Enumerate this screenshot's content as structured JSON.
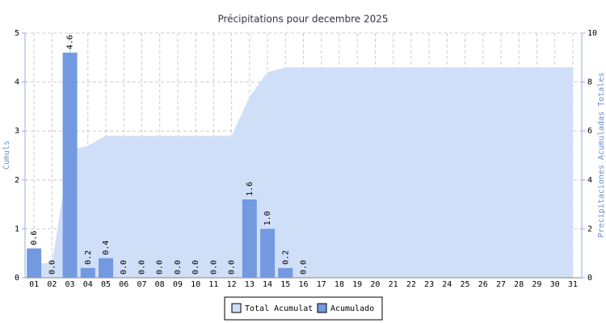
{
  "chart_data": {
    "type": "bar",
    "title": "Précipitations pour decembre 2025",
    "ylabel": "Cumuls",
    "y2label": "Precipitaciones Acumuladas Totales",
    "categories": [
      "01",
      "02",
      "03",
      "04",
      "05",
      "06",
      "07",
      "08",
      "09",
      "10",
      "11",
      "12",
      "13",
      "14",
      "15",
      "16",
      "17",
      "18",
      "19",
      "20",
      "21",
      "22",
      "23",
      "24",
      "25",
      "26",
      "27",
      "28",
      "29",
      "30",
      "31"
    ],
    "series": [
      {
        "name": "Total Acumulat",
        "type": "area",
        "axis": "y2",
        "color": "#d0dff8",
        "values": [
          0.6,
          0.6,
          5.2,
          5.4,
          5.8,
          5.8,
          5.8,
          5.8,
          5.8,
          5.8,
          5.8,
          5.8,
          7.4,
          8.4,
          8.6,
          8.6,
          8.6,
          8.6,
          8.6,
          8.6,
          8.6,
          8.6,
          8.6,
          8.6,
          8.6,
          8.6,
          8.6,
          8.6,
          8.6,
          8.6,
          8.6
        ]
      },
      {
        "name": "Acumulado",
        "type": "bar",
        "color": "#7399e0",
        "values": [
          0.6,
          0,
          4.6,
          0.2,
          0.4,
          0,
          0,
          0,
          0,
          0,
          0,
          0,
          1.6,
          1,
          0.2,
          0,
          null,
          null,
          null,
          null,
          null,
          null,
          null,
          null,
          null,
          null,
          null,
          null,
          null,
          null,
          null
        ],
        "value_labels": [
          "0.6",
          "0.0",
          "4.6",
          "0.2",
          "0.4",
          "0.0",
          "0.0",
          "0.0",
          "0.0",
          "0.0",
          "0.0",
          "0.0",
          "1.6",
          "1.0",
          "0.2",
          "0.0",
          null,
          null,
          null,
          null,
          null,
          null,
          null,
          null,
          null,
          null,
          null,
          null,
          null,
          null,
          null
        ]
      }
    ],
    "ylim": [
      0,
      5
    ],
    "yticks": [
      0,
      1,
      2,
      3,
      4,
      5
    ],
    "y2lim": [
      0,
      10
    ],
    "y2ticks": [
      0,
      2,
      4,
      6,
      8,
      10
    ],
    "grid": true,
    "legend": "bottom"
  }
}
